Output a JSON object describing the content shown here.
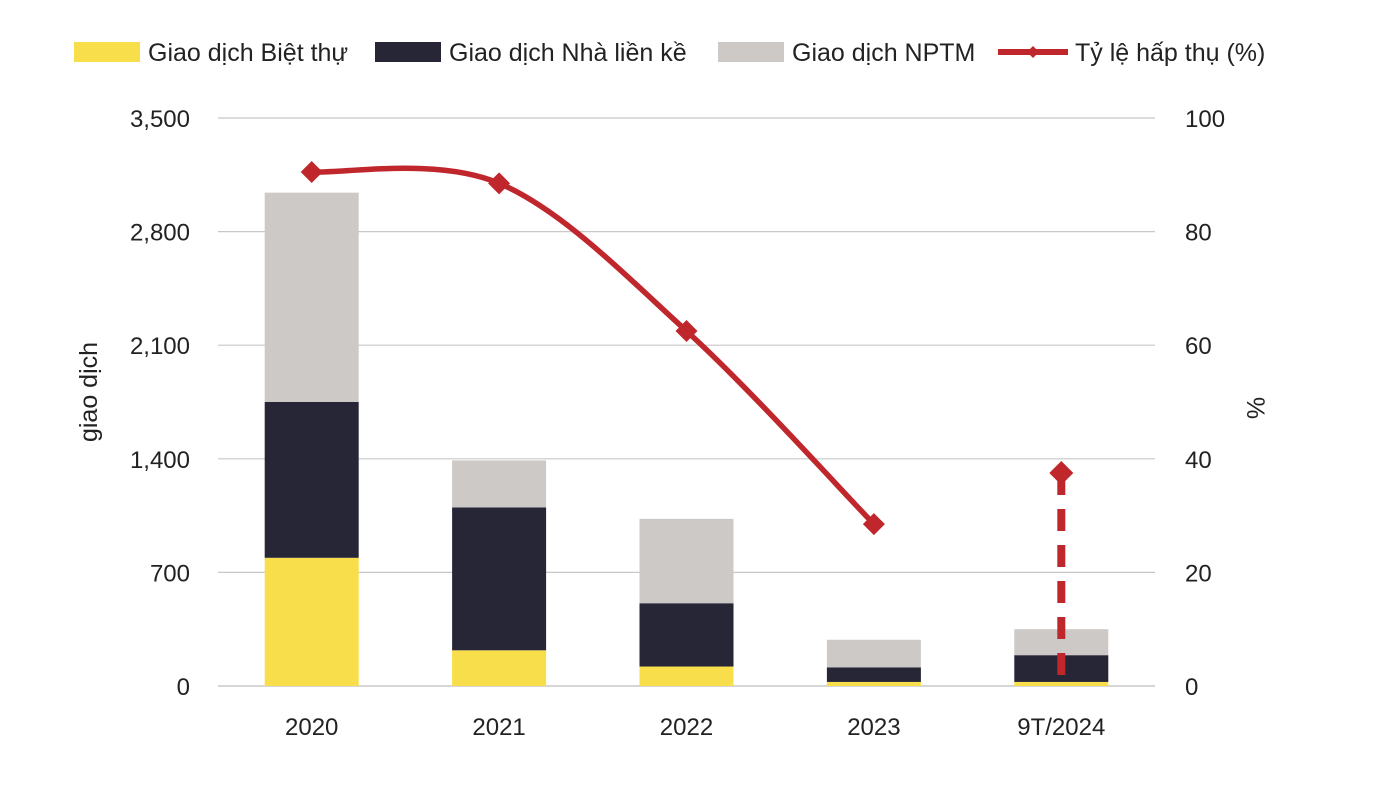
{
  "chart_data": {
    "type": "bar",
    "stacked": true,
    "categories": [
      "2020",
      "2021",
      "2022",
      "2023",
      "9T/2024"
    ],
    "series": [
      {
        "name": "Giao dịch Biệt thự",
        "color": "#F8DE4A",
        "values": [
          790,
          220,
          120,
          25,
          25
        ]
      },
      {
        "name": "Giao dịch Nhà liền kề",
        "color": "#262637",
        "values": [
          960,
          880,
          390,
          90,
          165
        ]
      },
      {
        "name": "Giao dịch NPTM",
        "color": "#CDC9C6",
        "values": [
          1290,
          290,
          520,
          170,
          160
        ]
      }
    ],
    "line_series": {
      "name": "Tỷ lệ hấp thụ (%)",
      "color": "#C0272D",
      "axis": "right",
      "values": [
        90.5,
        88.5,
        62.5,
        28.5,
        null
      ],
      "dashed_value": {
        "category": "9T/2024",
        "value": 37.5
      }
    },
    "ylabel_left": "giao dịch",
    "ylabel_right": "%",
    "ylim_left": [
      0,
      3500
    ],
    "yticks_left": [
      "0",
      "700",
      "1,400",
      "2,100",
      "2,800",
      "3,500"
    ],
    "yticks_left_values": [
      0,
      700,
      1400,
      2100,
      2800,
      3500
    ],
    "ylim_right": [
      0,
      100
    ],
    "yticks_right": [
      "0",
      "20",
      "40",
      "60",
      "80",
      "100"
    ],
    "yticks_right_values": [
      0,
      20,
      40,
      60,
      80,
      100
    ],
    "grid": true,
    "legend_position": "top"
  }
}
